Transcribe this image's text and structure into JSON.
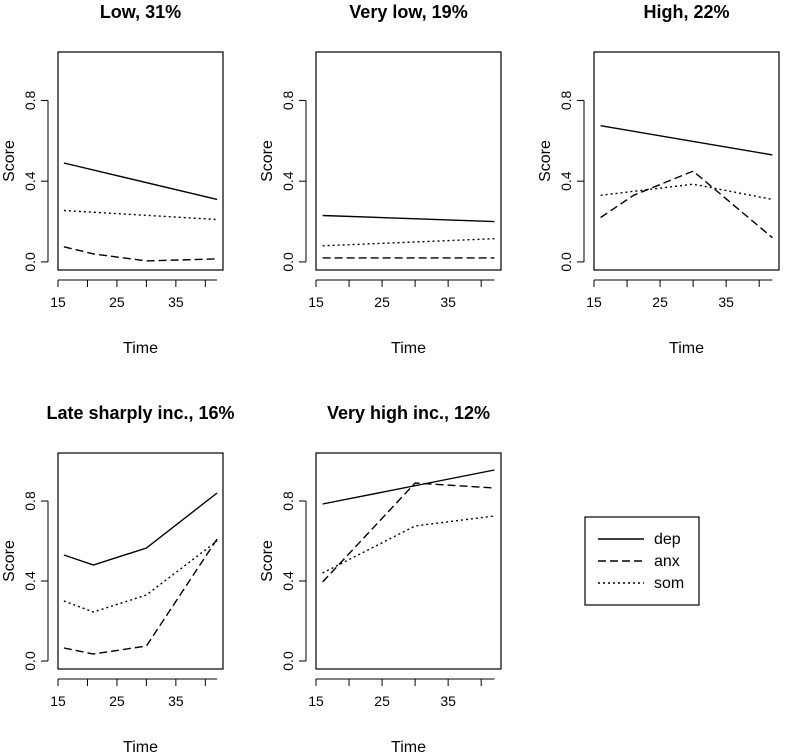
{
  "chart_data": [
    {
      "type": "line",
      "title": "Low, 31%",
      "xlabel": "Time",
      "ylabel": "Score",
      "xlim": [
        15,
        43
      ],
      "ylim": [
        -0.04,
        1.04
      ],
      "xticks": [
        15,
        25,
        35
      ],
      "yticks": [
        0.0,
        0.4,
        0.8
      ],
      "xtick_labels": [
        "15",
        "25",
        "35"
      ],
      "ytick_labels": [
        "0.0",
        "0.4",
        "0.8"
      ],
      "series": [
        {
          "name": "dep",
          "style": "solid",
          "x": [
            16,
            42
          ],
          "values": [
            0.49,
            0.31
          ]
        },
        {
          "name": "anx",
          "style": "dashed",
          "x": [
            16,
            21,
            30,
            42
          ],
          "values": [
            0.075,
            0.04,
            0.005,
            0.015
          ]
        },
        {
          "name": "som",
          "style": "dotted",
          "x": [
            16,
            42
          ],
          "values": [
            0.255,
            0.21
          ]
        }
      ]
    },
    {
      "type": "line",
      "title": "Very low, 19%",
      "xlabel": "Time",
      "ylabel": "Score",
      "xlim": [
        15,
        43
      ],
      "ylim": [
        -0.04,
        1.04
      ],
      "xticks": [
        15,
        25,
        35
      ],
      "yticks": [
        0.0,
        0.4,
        0.8
      ],
      "xtick_labels": [
        "15",
        "25",
        "35"
      ],
      "ytick_labels": [
        "0.0",
        "0.4",
        "0.8"
      ],
      "series": [
        {
          "name": "dep",
          "style": "solid",
          "x": [
            16,
            42
          ],
          "values": [
            0.23,
            0.2
          ]
        },
        {
          "name": "anx",
          "style": "dashed",
          "x": [
            16,
            42
          ],
          "values": [
            0.02,
            0.02
          ]
        },
        {
          "name": "som",
          "style": "dotted",
          "x": [
            16,
            42
          ],
          "values": [
            0.08,
            0.115
          ]
        }
      ]
    },
    {
      "type": "line",
      "title": "High, 22%",
      "xlabel": "Time",
      "ylabel": "Score",
      "xlim": [
        15,
        43
      ],
      "ylim": [
        -0.04,
        1.04
      ],
      "xticks": [
        15,
        25,
        35
      ],
      "yticks": [
        0.0,
        0.4,
        0.8
      ],
      "xtick_labels": [
        "15",
        "25",
        "35"
      ],
      "ytick_labels": [
        "0.0",
        "0.4",
        "0.8"
      ],
      "series": [
        {
          "name": "dep",
          "style": "solid",
          "x": [
            16,
            42
          ],
          "values": [
            0.675,
            0.53
          ]
        },
        {
          "name": "anx",
          "style": "dashed",
          "x": [
            16,
            21,
            30,
            42
          ],
          "values": [
            0.22,
            0.33,
            0.45,
            0.12
          ]
        },
        {
          "name": "som",
          "style": "dotted",
          "x": [
            16,
            30,
            42
          ],
          "values": [
            0.33,
            0.385,
            0.31
          ]
        }
      ]
    },
    {
      "type": "line",
      "title": "Late sharply inc., 16%",
      "xlabel": "Time",
      "ylabel": "Score",
      "xlim": [
        15,
        43
      ],
      "ylim": [
        -0.04,
        1.04
      ],
      "xticks": [
        15,
        25,
        35
      ],
      "yticks": [
        0.0,
        0.4,
        0.8
      ],
      "xtick_labels": [
        "15",
        "25",
        "35"
      ],
      "ytick_labels": [
        "0.0",
        "0.4",
        "0.8"
      ],
      "series": [
        {
          "name": "dep",
          "style": "solid",
          "x": [
            16,
            21,
            30,
            42
          ],
          "values": [
            0.53,
            0.48,
            0.565,
            0.84
          ]
        },
        {
          "name": "anx",
          "style": "dashed",
          "x": [
            16,
            21,
            30,
            42
          ],
          "values": [
            0.065,
            0.035,
            0.075,
            0.61
          ]
        },
        {
          "name": "som",
          "style": "dotted",
          "x": [
            16,
            21,
            30,
            42
          ],
          "values": [
            0.3,
            0.245,
            0.33,
            0.6
          ]
        }
      ]
    },
    {
      "type": "line",
      "title": "Very high inc., 12%",
      "xlabel": "Time",
      "ylabel": "Score",
      "xlim": [
        15,
        43
      ],
      "ylim": [
        -0.04,
        1.04
      ],
      "xticks": [
        15,
        25,
        35
      ],
      "yticks": [
        0.0,
        0.4,
        0.8
      ],
      "xtick_labels": [
        "15",
        "25",
        "35"
      ],
      "ytick_labels": [
        "0.0",
        "0.4",
        "0.8"
      ],
      "series": [
        {
          "name": "dep",
          "style": "solid",
          "x": [
            16,
            42
          ],
          "values": [
            0.785,
            0.955
          ]
        },
        {
          "name": "anx",
          "style": "dashed",
          "x": [
            16,
            30,
            42
          ],
          "values": [
            0.395,
            0.89,
            0.865
          ]
        },
        {
          "name": "som",
          "style": "dotted",
          "x": [
            16,
            30,
            42
          ],
          "values": [
            0.44,
            0.675,
            0.725
          ]
        }
      ]
    }
  ],
  "legend": {
    "entries": [
      {
        "label": "dep",
        "style": "solid"
      },
      {
        "label": "anx",
        "style": "dashed"
      },
      {
        "label": "som",
        "style": "dotted"
      }
    ]
  }
}
